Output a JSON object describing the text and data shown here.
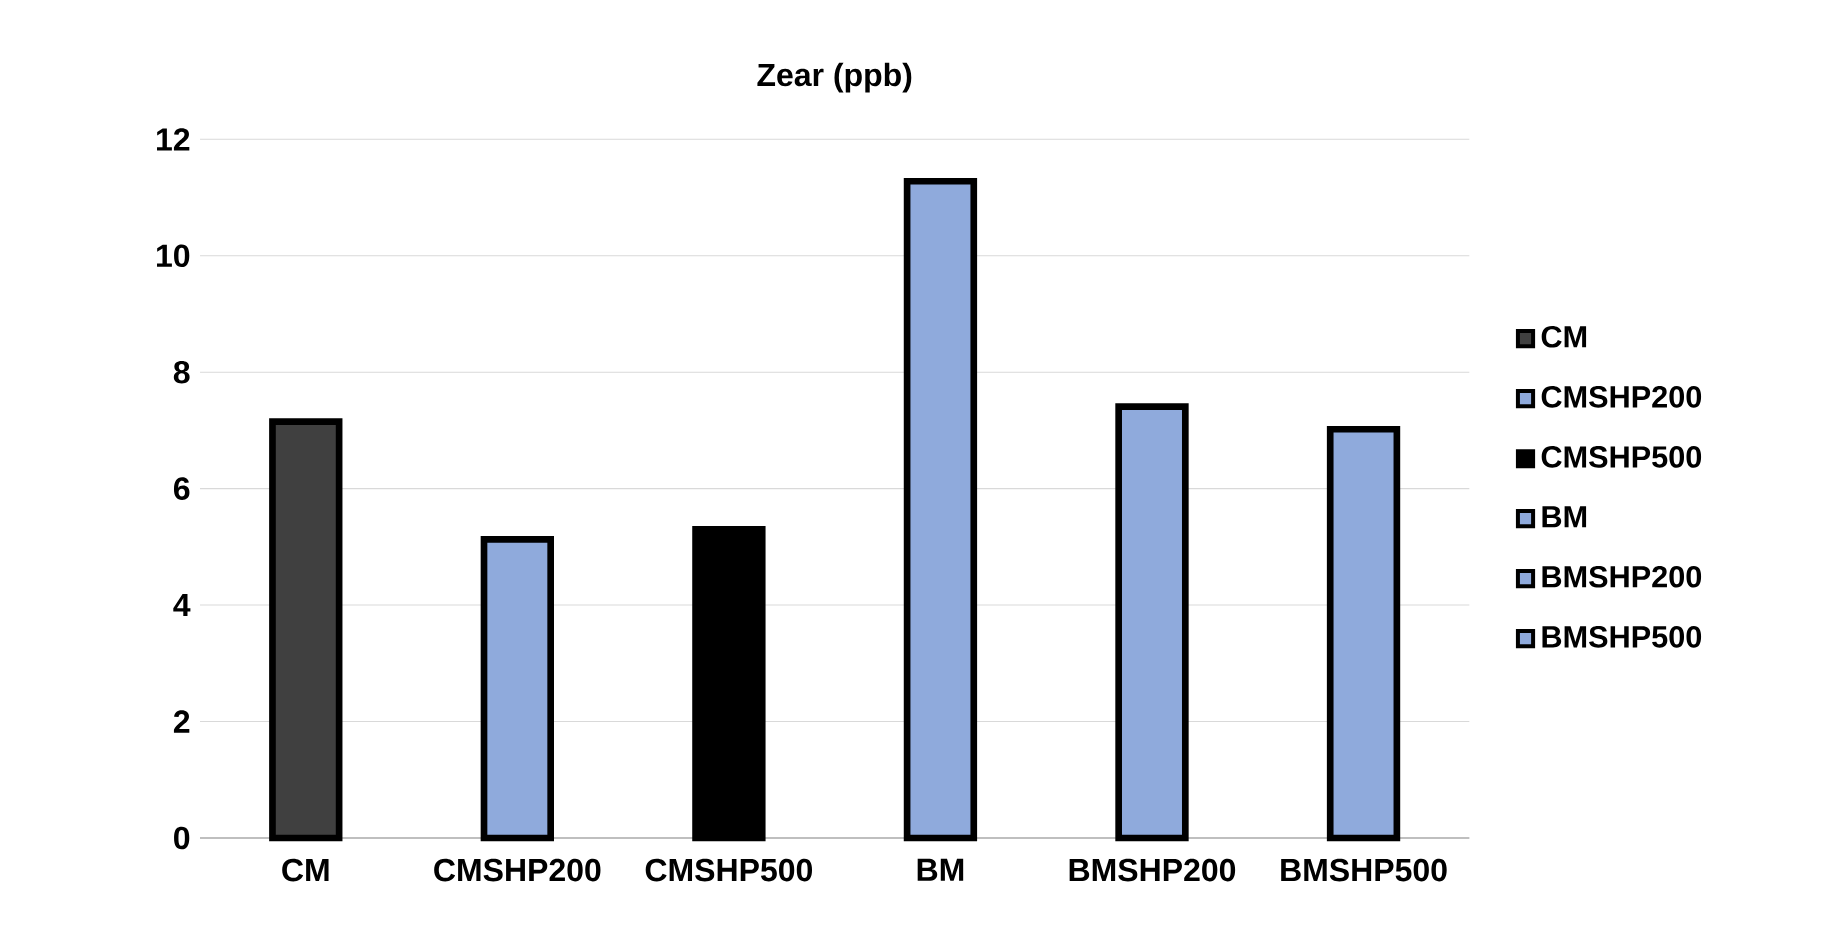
{
  "chart_data": {
    "type": "bar",
    "title": "Zear (ppb)",
    "categories": [
      "CM",
      "CMSHP200",
      "CMSHP500",
      "BM",
      "BMSHP200",
      "BMSHP500"
    ],
    "series": [
      {
        "name": "CM",
        "color": "#404040",
        "values": [
          7.15,
          null,
          null,
          null,
          null,
          null
        ]
      },
      {
        "name": "CMSHP200",
        "color": "#8faadc",
        "values": [
          null,
          5.13,
          null,
          null,
          null,
          null
        ]
      },
      {
        "name": "CMSHP500",
        "color": "#000000",
        "values": [
          null,
          null,
          5.3,
          null,
          null,
          null
        ]
      },
      {
        "name": "BM",
        "color": "#8faadc",
        "values": [
          null,
          null,
          null,
          11.28,
          null,
          null
        ]
      },
      {
        "name": "BMSHP200",
        "color": "#8faadc",
        "values": [
          null,
          null,
          null,
          null,
          7.41,
          null
        ]
      },
      {
        "name": "BMSHP500",
        "color": "#8faadc",
        "values": [
          null,
          null,
          null,
          null,
          null,
          7.02
        ]
      }
    ],
    "ylim": [
      0,
      12
    ],
    "yticks": [
      0,
      2,
      4,
      6,
      8,
      10,
      12
    ],
    "grid": "y",
    "legend": "right"
  }
}
